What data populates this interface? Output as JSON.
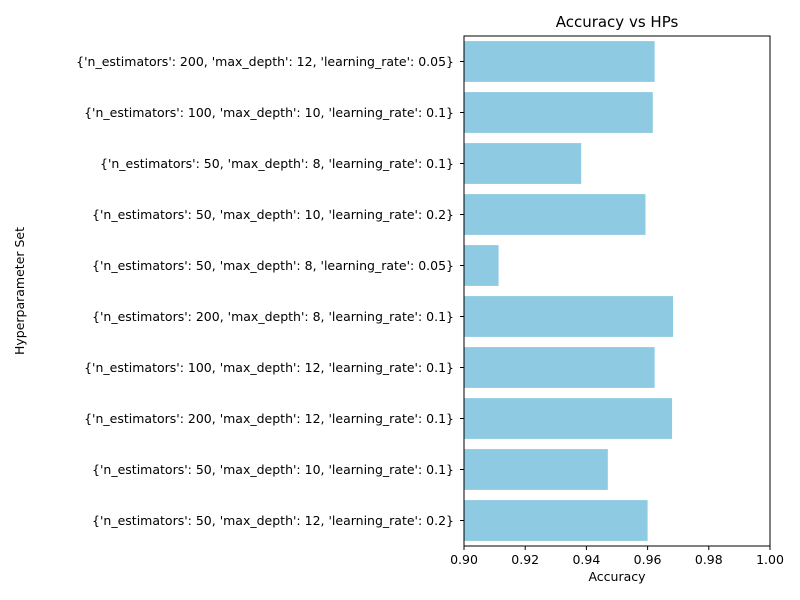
{
  "chart_data": {
    "type": "bar",
    "orientation": "horizontal",
    "title": "Accuracy vs HPs",
    "xlabel": "Accuracy",
    "ylabel": "Hyperparameter Set",
    "xlim": [
      0.9,
      1.0
    ],
    "xticks": [
      "0.90",
      "0.92",
      "0.94",
      "0.96",
      "0.98",
      "1.00"
    ],
    "grid": false,
    "bar_color": "#8ecae1",
    "categories": [
      "{'n_estimators': 200, 'max_depth': 12, 'learning_rate': 0.05}",
      "{'n_estimators': 100, 'max_depth': 10, 'learning_rate': 0.1}",
      "{'n_estimators': 50, 'max_depth': 8, 'learning_rate': 0.1}",
      "{'n_estimators': 50, 'max_depth': 10, 'learning_rate': 0.2}",
      "{'n_estimators': 50, 'max_depth': 8, 'learning_rate': 0.05}",
      "{'n_estimators': 200, 'max_depth': 8, 'learning_rate': 0.1}",
      "{'n_estimators': 100, 'max_depth': 12, 'learning_rate': 0.1}",
      "{'n_estimators': 200, 'max_depth': 12, 'learning_rate': 0.1}",
      "{'n_estimators': 50, 'max_depth': 10, 'learning_rate': 0.1}",
      "{'n_estimators': 50, 'max_depth': 12, 'learning_rate': 0.2}"
    ],
    "values": [
      0.9623,
      0.9617,
      0.9383,
      0.9593,
      0.9113,
      0.9683,
      0.9623,
      0.968,
      0.947,
      0.96
    ]
  }
}
